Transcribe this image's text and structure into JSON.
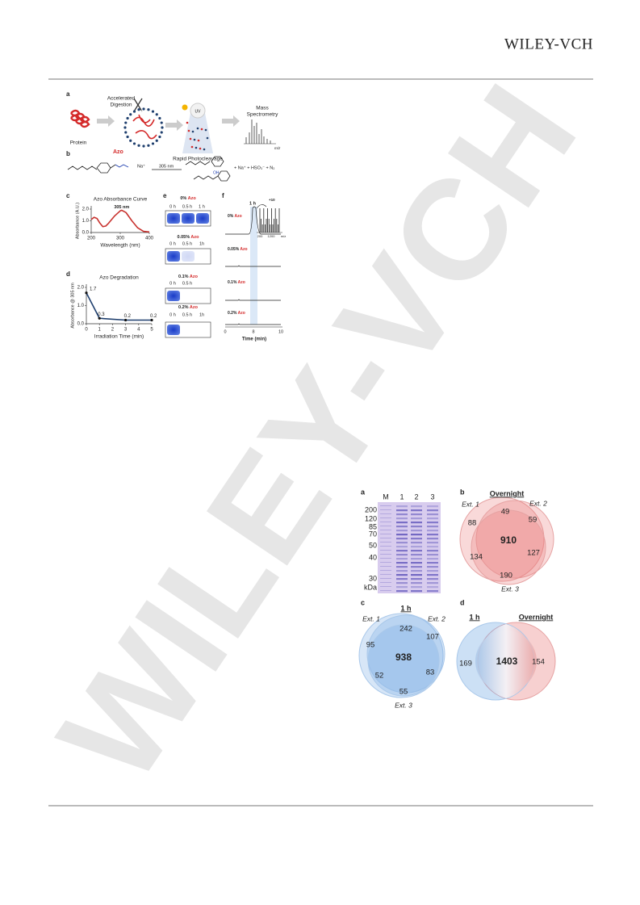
{
  "header": {
    "publisher": "WILEY-VCH"
  },
  "watermark": "WILEY-VCH",
  "figure1": {
    "a": {
      "label": "a",
      "digestion": [
        "Accelerated",
        "Digestion"
      ],
      "protein": "Protein",
      "uv": "UV",
      "photocleavage": "Rapid Photocleavage",
      "ms": [
        "Mass",
        "Spectrometry"
      ],
      "mz": "m/z"
    },
    "b": {
      "label": "b",
      "reagent": "Azo",
      "counterion": "Na⁺",
      "wavelength": "305 nm",
      "products": "+ Na⁺ + HSO₃⁻ + N₂",
      "hydroxyl": "OH"
    },
    "c": {
      "label": "c",
      "title": "Azo Absorbance Curve",
      "annotation": "305 nm",
      "x": [
        200,
        210,
        220,
        230,
        240,
        250,
        260,
        280,
        300,
        305,
        320,
        340,
        360,
        380,
        400
      ],
      "values": [
        1.1,
        1.3,
        1.2,
        0.8,
        0.5,
        0.55,
        0.8,
        1.4,
        1.85,
        1.9,
        1.7,
        1.0,
        0.4,
        0.1,
        0.05
      ],
      "color": "#c8322e",
      "xlim": [
        200,
        400
      ],
      "ylim": [
        0,
        2
      ],
      "xticks": [
        200,
        300,
        400
      ],
      "yticks": [
        {
          "value": 0,
          "label": "0.0"
        },
        {
          "value": 1,
          "label": "1.0"
        },
        {
          "value": 2,
          "label": "2.0"
        }
      ],
      "xlabel": "Wavelength (nm)",
      "ylabel": "Absorbance (A.U.)"
    },
    "d": {
      "label": "d",
      "title": "Azo Degradation",
      "x": [
        0,
        1,
        3,
        5
      ],
      "values": [
        1.7,
        0.3,
        0.2,
        0.2
      ],
      "color": "#1f3f6e",
      "xlim": [
        0,
        5
      ],
      "ylim": [
        0,
        2
      ],
      "xticks": [
        0,
        1,
        2,
        3,
        4,
        5
      ],
      "yticks": [
        {
          "value": 0,
          "label": "0.0"
        },
        {
          "value": 1,
          "label": "1.0"
        },
        {
          "value": 2,
          "label": "2.0"
        }
      ],
      "xlabel": "Irradiation Time (min)",
      "ylabel": "Absorbance @ 305 nm"
    },
    "e": {
      "label": "e",
      "samples": [
        {
          "amount": "0%",
          "reagent": "Azo",
          "lanes": [
            "0 h",
            "0.5 h",
            "1 h"
          ]
        },
        {
          "amount": "0.05%",
          "reagent": "Azo",
          "lanes": [
            "0 h",
            "0.5 h",
            "1h"
          ]
        },
        {
          "amount": "0.1%",
          "reagent": "Azo",
          "lanes": [
            "0 h",
            "0.5 h"
          ]
        },
        {
          "amount": "0.2%",
          "reagent": "Azo",
          "lanes": [
            "0 h",
            "0.5 h",
            "1h"
          ]
        }
      ]
    },
    "f": {
      "label": "f",
      "traces": [
        {
          "amount": "0%",
          "reagent": "Azo"
        },
        {
          "amount": "0.05%",
          "reagent": "Azo"
        },
        {
          "amount": "0.1%",
          "reagent": "Azo"
        },
        {
          "amount": "0.2%",
          "reagent": "Azo"
        }
      ],
      "time": "1 h",
      "inset_note": "+10",
      "inset_ticks": [
        "200",
        "1200",
        "m/z"
      ],
      "xticks": [
        "0",
        "8",
        "10"
      ],
      "xlabel": "Time (min)"
    }
  },
  "figure2": {
    "a": {
      "label": "a",
      "lanes": [
        "M",
        "1",
        "2",
        "3"
      ],
      "markers": [
        "200",
        "120",
        "85",
        "70",
        "50",
        "40",
        "30",
        "kDa"
      ]
    },
    "b": {
      "label": "b",
      "title": "Overnight",
      "sets": [
        "Ext. 1",
        "Ext. 2",
        "Ext. 3"
      ],
      "counts": [
        "49",
        "59",
        "88",
        "910",
        "134",
        "127",
        "190"
      ]
    },
    "c": {
      "label": "c",
      "title": "1 h",
      "sets": [
        "Ext. 1",
        "Ext. 2",
        "Ext. 3"
      ],
      "counts": [
        "242",
        "107",
        "95",
        "938",
        "52",
        "83",
        "55"
      ]
    },
    "d": {
      "label": "d",
      "sets": [
        "1 h",
        "Overnight"
      ],
      "counts": [
        "169",
        "1403",
        "154"
      ]
    }
  }
}
